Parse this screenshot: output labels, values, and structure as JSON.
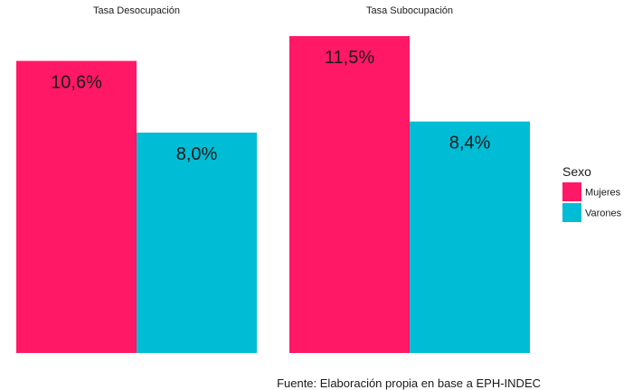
{
  "chart_data": {
    "type": "bar",
    "facets": [
      {
        "title": "Tasa Desocupación",
        "values": [
          10.6,
          8.0
        ],
        "labels": [
          "10,6%",
          "8,0%"
        ]
      },
      {
        "title": "Tasa Subocupación",
        "values": [
          11.5,
          8.4
        ],
        "labels": [
          "11,5%",
          "8,4%"
        ]
      }
    ],
    "series": [
      {
        "name": "Mujeres",
        "color": "#ff1865"
      },
      {
        "name": "Varones",
        "color": "#00bcd5"
      }
    ],
    "legend": {
      "title": "Sexo",
      "position": "right"
    },
    "ylim": [
      0,
      11.5
    ],
    "grid": false,
    "caption": "Fuente: Elaboración propia en base a EPH-INDEC"
  }
}
